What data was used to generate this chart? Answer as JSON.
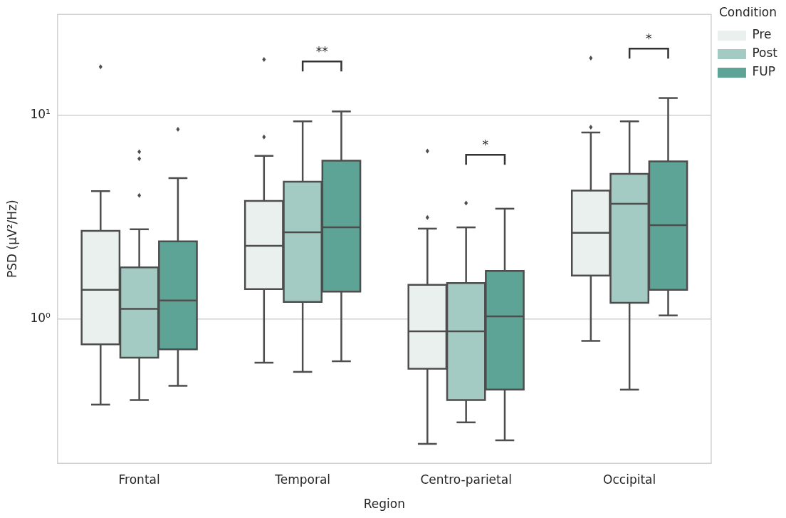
{
  "chart_data": {
    "type": "box",
    "xlabel": "Region",
    "ylabel": "PSD (μV²/Hz)",
    "legend_title": "Condition",
    "legend": "top right",
    "log": true,
    "grid": "y",
    "categories": [
      "Frontal",
      "Temporal",
      "Centro-parietal",
      "Occipital"
    ],
    "ylim": [
      0.196,
      31.1
    ],
    "yticks": [
      {
        "value": 1,
        "label": "10⁰"
      },
      {
        "value": 10,
        "label": "10¹"
      }
    ],
    "series": [
      {
        "name": "Pre",
        "color": "#eaf0ee",
        "boxes": [
          {
            "low": 0.38,
            "q1": 0.75,
            "median": 1.39,
            "q3": 2.7,
            "high": 4.23,
            "outliers": [
              17.2
            ]
          },
          {
            "low": 0.61,
            "q1": 1.4,
            "median": 2.28,
            "q3": 3.79,
            "high": 6.3,
            "outliers": [
              7.8,
              18.7
            ]
          },
          {
            "low": 0.244,
            "q1": 0.57,
            "median": 0.87,
            "q3": 1.47,
            "high": 2.77,
            "outliers": [
              3.14,
              6.65
            ]
          },
          {
            "low": 0.78,
            "q1": 1.63,
            "median": 2.64,
            "q3": 4.26,
            "high": 8.2,
            "outliers": [
              8.7,
              19
            ]
          }
        ]
      },
      {
        "name": "Post",
        "color": "#a3cbc3",
        "boxes": [
          {
            "low": 0.4,
            "q1": 0.645,
            "median": 1.12,
            "q3": 1.79,
            "high": 2.75,
            "outliers": [
              4.03,
              6.1,
              6.6
            ]
          },
          {
            "low": 0.55,
            "q1": 1.21,
            "median": 2.66,
            "q3": 4.71,
            "high": 9.3
          },
          {
            "low": 0.311,
            "q1": 0.4,
            "median": 0.87,
            "q3": 1.5,
            "high": 2.81,
            "outliers": [
              3.7
            ]
          },
          {
            "low": 0.45,
            "q1": 1.2,
            "median": 3.67,
            "q3": 5.14,
            "high": 9.3
          }
        ]
      },
      {
        "name": "FUP",
        "color": "#5ea496",
        "boxes": [
          {
            "low": 0.47,
            "q1": 0.71,
            "median": 1.23,
            "q3": 2.4,
            "high": 4.9,
            "outliers": [
              8.5
            ]
          },
          {
            "low": 0.62,
            "q1": 1.36,
            "median": 2.81,
            "q3": 5.97,
            "high": 10.4
          },
          {
            "low": 0.254,
            "q1": 0.45,
            "median": 1.03,
            "q3": 1.72,
            "high": 3.47
          },
          {
            "low": 1.04,
            "q1": 1.39,
            "median": 2.88,
            "q3": 5.92,
            "high": 12.1
          }
        ]
      }
    ],
    "annotations": [
      "**",
      "*",
      "*"
    ]
  }
}
